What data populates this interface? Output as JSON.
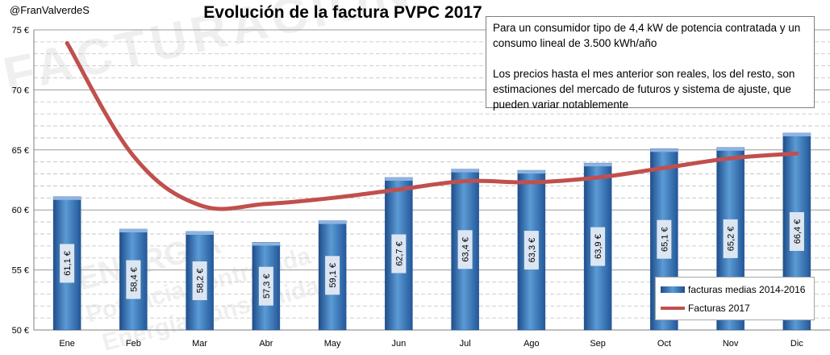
{
  "header": {
    "handle": "@FranValverdeS"
  },
  "note": {
    "line1": "Para un consumidor tipo de 4,4 kW de potencia contratada y un consumo lineal de 3.500 kWh/año",
    "line2": "Los precios hasta el mes anterior son reales, los del resto, son estimaciones del mercado de futuros y sistema de ajuste, que pueden variar notablemente"
  },
  "colors": {
    "bar": "#4a86c8",
    "bar_dark": "#1f4e8c",
    "line": "#c0504d",
    "grid": "#bfbfbf"
  },
  "chart_data": {
    "type": "bar",
    "title": "Evolución de la factura PVPC 2017",
    "xlabel": "",
    "ylabel": "",
    "categories": [
      "Ene",
      "Feb",
      "Mar",
      "Abr",
      "May",
      "Jun",
      "Jul",
      "Ago",
      "Sep",
      "Oct",
      "Nov",
      "Dic"
    ],
    "ylim": [
      50,
      75
    ],
    "yticks": [
      50,
      55,
      60,
      65,
      70,
      75
    ],
    "ytick_labels": [
      "50 €",
      "55 €",
      "60 €",
      "65 €",
      "70 €",
      "75 €"
    ],
    "grid": true,
    "legend_position": "bottom-right",
    "series": [
      {
        "name": "facturas medias 2014-2016",
        "type": "bar",
        "values": [
          61.1,
          58.4,
          58.2,
          57.3,
          59.1,
          62.7,
          63.4,
          63.3,
          63.9,
          65.1,
          65.2,
          66.4
        ],
        "labels": [
          "61,1 €",
          "58,4 €",
          "58,2 €",
          "57,3 €",
          "59,1 €",
          "62,7 €",
          "63,4 €",
          "63,3 €",
          "63,9 €",
          "65,1 €",
          "65,2 €",
          "66,4 €"
        ]
      },
      {
        "name": "Facturas 2017",
        "type": "line",
        "values": [
          73.9,
          64.5,
          60.4,
          60.5,
          61.0,
          61.7,
          62.4,
          62.3,
          62.7,
          63.5,
          64.3,
          64.7
        ]
      }
    ]
  }
}
